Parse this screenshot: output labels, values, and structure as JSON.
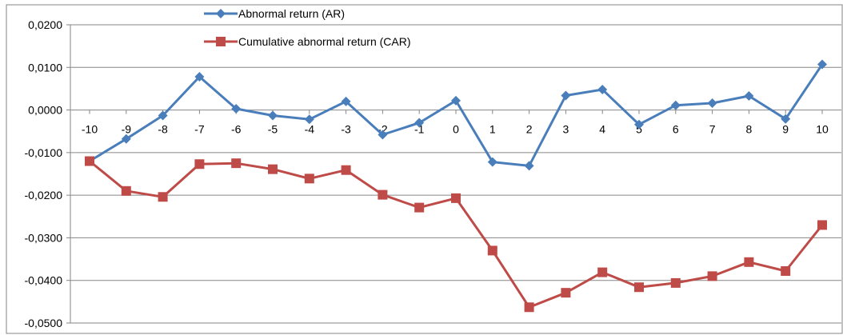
{
  "chart_data": {
    "type": "line",
    "x": [
      -10,
      -9,
      -8,
      -7,
      -6,
      -5,
      -4,
      -3,
      -2,
      -1,
      0,
      1,
      2,
      3,
      4,
      5,
      6,
      7,
      8,
      9,
      10
    ],
    "x_tick_labels": [
      "-10",
      "-9",
      "-8",
      "-7",
      "-6",
      "-5",
      "-4",
      "-3",
      "-2",
      "-1",
      "0",
      "1",
      "2",
      "3",
      "4",
      "5",
      "6",
      "7",
      "8",
      "9",
      "10"
    ],
    "ylim": [
      -0.05,
      0.02
    ],
    "y_ticks": [
      0.02,
      0.01,
      0.0,
      -0.01,
      -0.02,
      -0.03,
      -0.04,
      -0.05
    ],
    "y_tick_labels": [
      "0,0200",
      "0,0100",
      "0,0000",
      "-0,0100",
      "-0,0200",
      "-0,0300",
      "-0,0400",
      "-0,0500"
    ],
    "grid": true,
    "legend_position": "top-center",
    "series": [
      {
        "name": "Abnormal return (AR)",
        "color": "#4a7ebb",
        "marker": "diamond",
        "values": [
          -0.012,
          -0.0068,
          -0.0013,
          0.0078,
          0.0003,
          -0.0013,
          -0.0022,
          0.002,
          -0.0058,
          -0.003,
          0.0022,
          -0.0122,
          -0.0131,
          0.0034,
          0.0048,
          -0.0034,
          0.0011,
          0.0016,
          0.0033,
          -0.0021,
          0.0107
        ]
      },
      {
        "name": "Cumulative abnormal return (CAR)",
        "color": "#be4b48",
        "marker": "square",
        "values": [
          -0.012,
          -0.019,
          -0.0204,
          -0.0127,
          -0.0125,
          -0.0139,
          -0.0161,
          -0.0141,
          -0.0199,
          -0.0229,
          -0.0207,
          -0.033,
          -0.0463,
          -0.0429,
          -0.0381,
          -0.0416,
          -0.0406,
          -0.039,
          -0.0357,
          -0.0378,
          -0.027
        ]
      }
    ]
  }
}
